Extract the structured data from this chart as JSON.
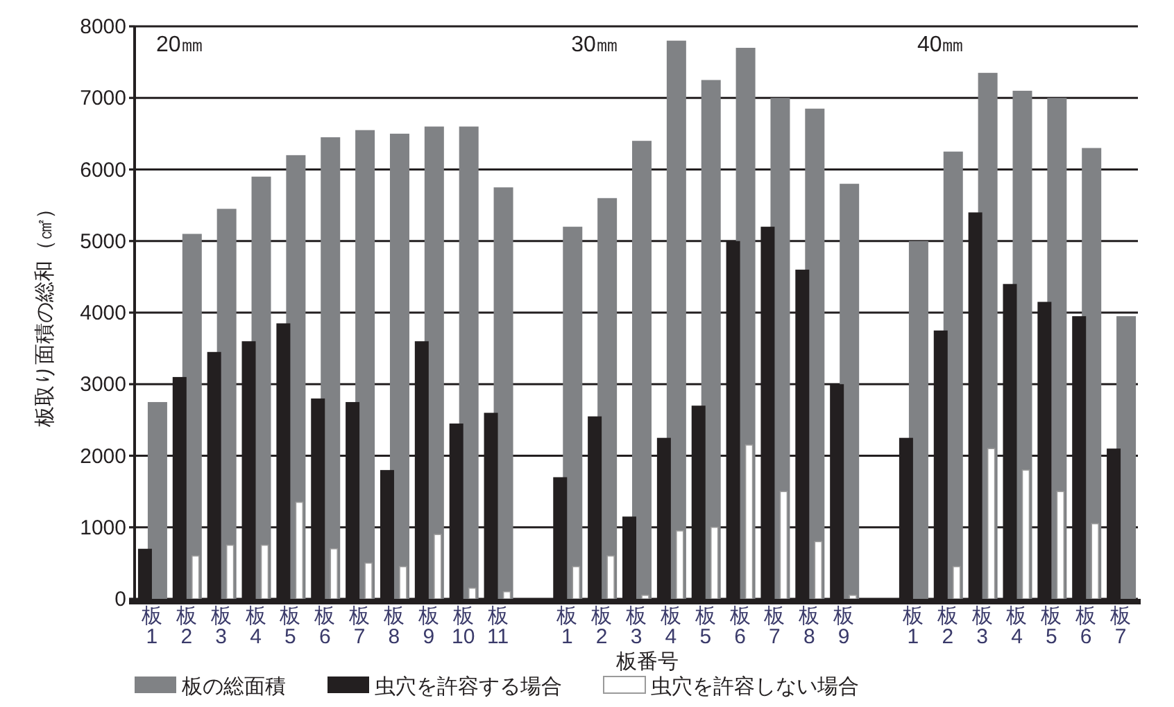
{
  "chart_data": {
    "type": "bar",
    "xlabel": "板番号",
    "ylabel": "板取り面積の総和（㎠）",
    "categories": [
      "板\n1",
      "板\n2",
      "板\n3",
      "板\n4",
      "板\n5",
      "板\n6",
      "板\n7",
      "板\n8",
      "板\n9",
      "板\n10",
      "板\n11",
      null,
      "板\n1",
      "板\n2",
      "板\n3",
      "板\n4",
      "板\n5",
      "板\n6",
      "板\n7",
      "板\n8",
      "板\n9",
      null,
      "板\n1",
      "板\n2",
      "板\n3",
      "板\n4",
      "板\n5",
      "板\n6",
      "板\n7"
    ],
    "series": [
      {
        "name": "板の総面積",
        "color": "#808285",
        "values": [
          2750,
          5100,
          5450,
          5900,
          6200,
          6450,
          6550,
          6500,
          6600,
          6600,
          5750,
          null,
          5200,
          5600,
          6400,
          7800,
          7250,
          7700,
          7000,
          6850,
          5800,
          null,
          5000,
          6250,
          7350,
          7100,
          7000,
          6300,
          3950
        ]
      },
      {
        "name": "虫穴を許容する場合",
        "color": "#231f20",
        "values": [
          700,
          3100,
          3450,
          3600,
          3850,
          2800,
          2750,
          1800,
          3600,
          2450,
          2600,
          null,
          1700,
          2550,
          1150,
          2250,
          2700,
          5000,
          5200,
          4600,
          3000,
          null,
          2250,
          3750,
          5400,
          4400,
          4150,
          3950,
          2100
        ]
      },
      {
        "name": "虫穴を許容しない場合",
        "color": "#ffffff",
        "values": [
          0,
          600,
          750,
          750,
          1350,
          700,
          500,
          450,
          900,
          150,
          100,
          null,
          450,
          600,
          50,
          950,
          1000,
          2150,
          1500,
          800,
          50,
          null,
          0,
          450,
          2100,
          1800,
          1500,
          1050,
          0
        ]
      }
    ],
    "annotations": [
      "20㎜",
      "30㎜",
      "40㎜"
    ],
    "ylim": [
      0,
      8000
    ],
    "yticks": [
      0,
      1000,
      2000,
      3000,
      4000,
      5000,
      6000,
      7000,
      8000
    ],
    "grid": "y",
    "legend": "bottom"
  }
}
